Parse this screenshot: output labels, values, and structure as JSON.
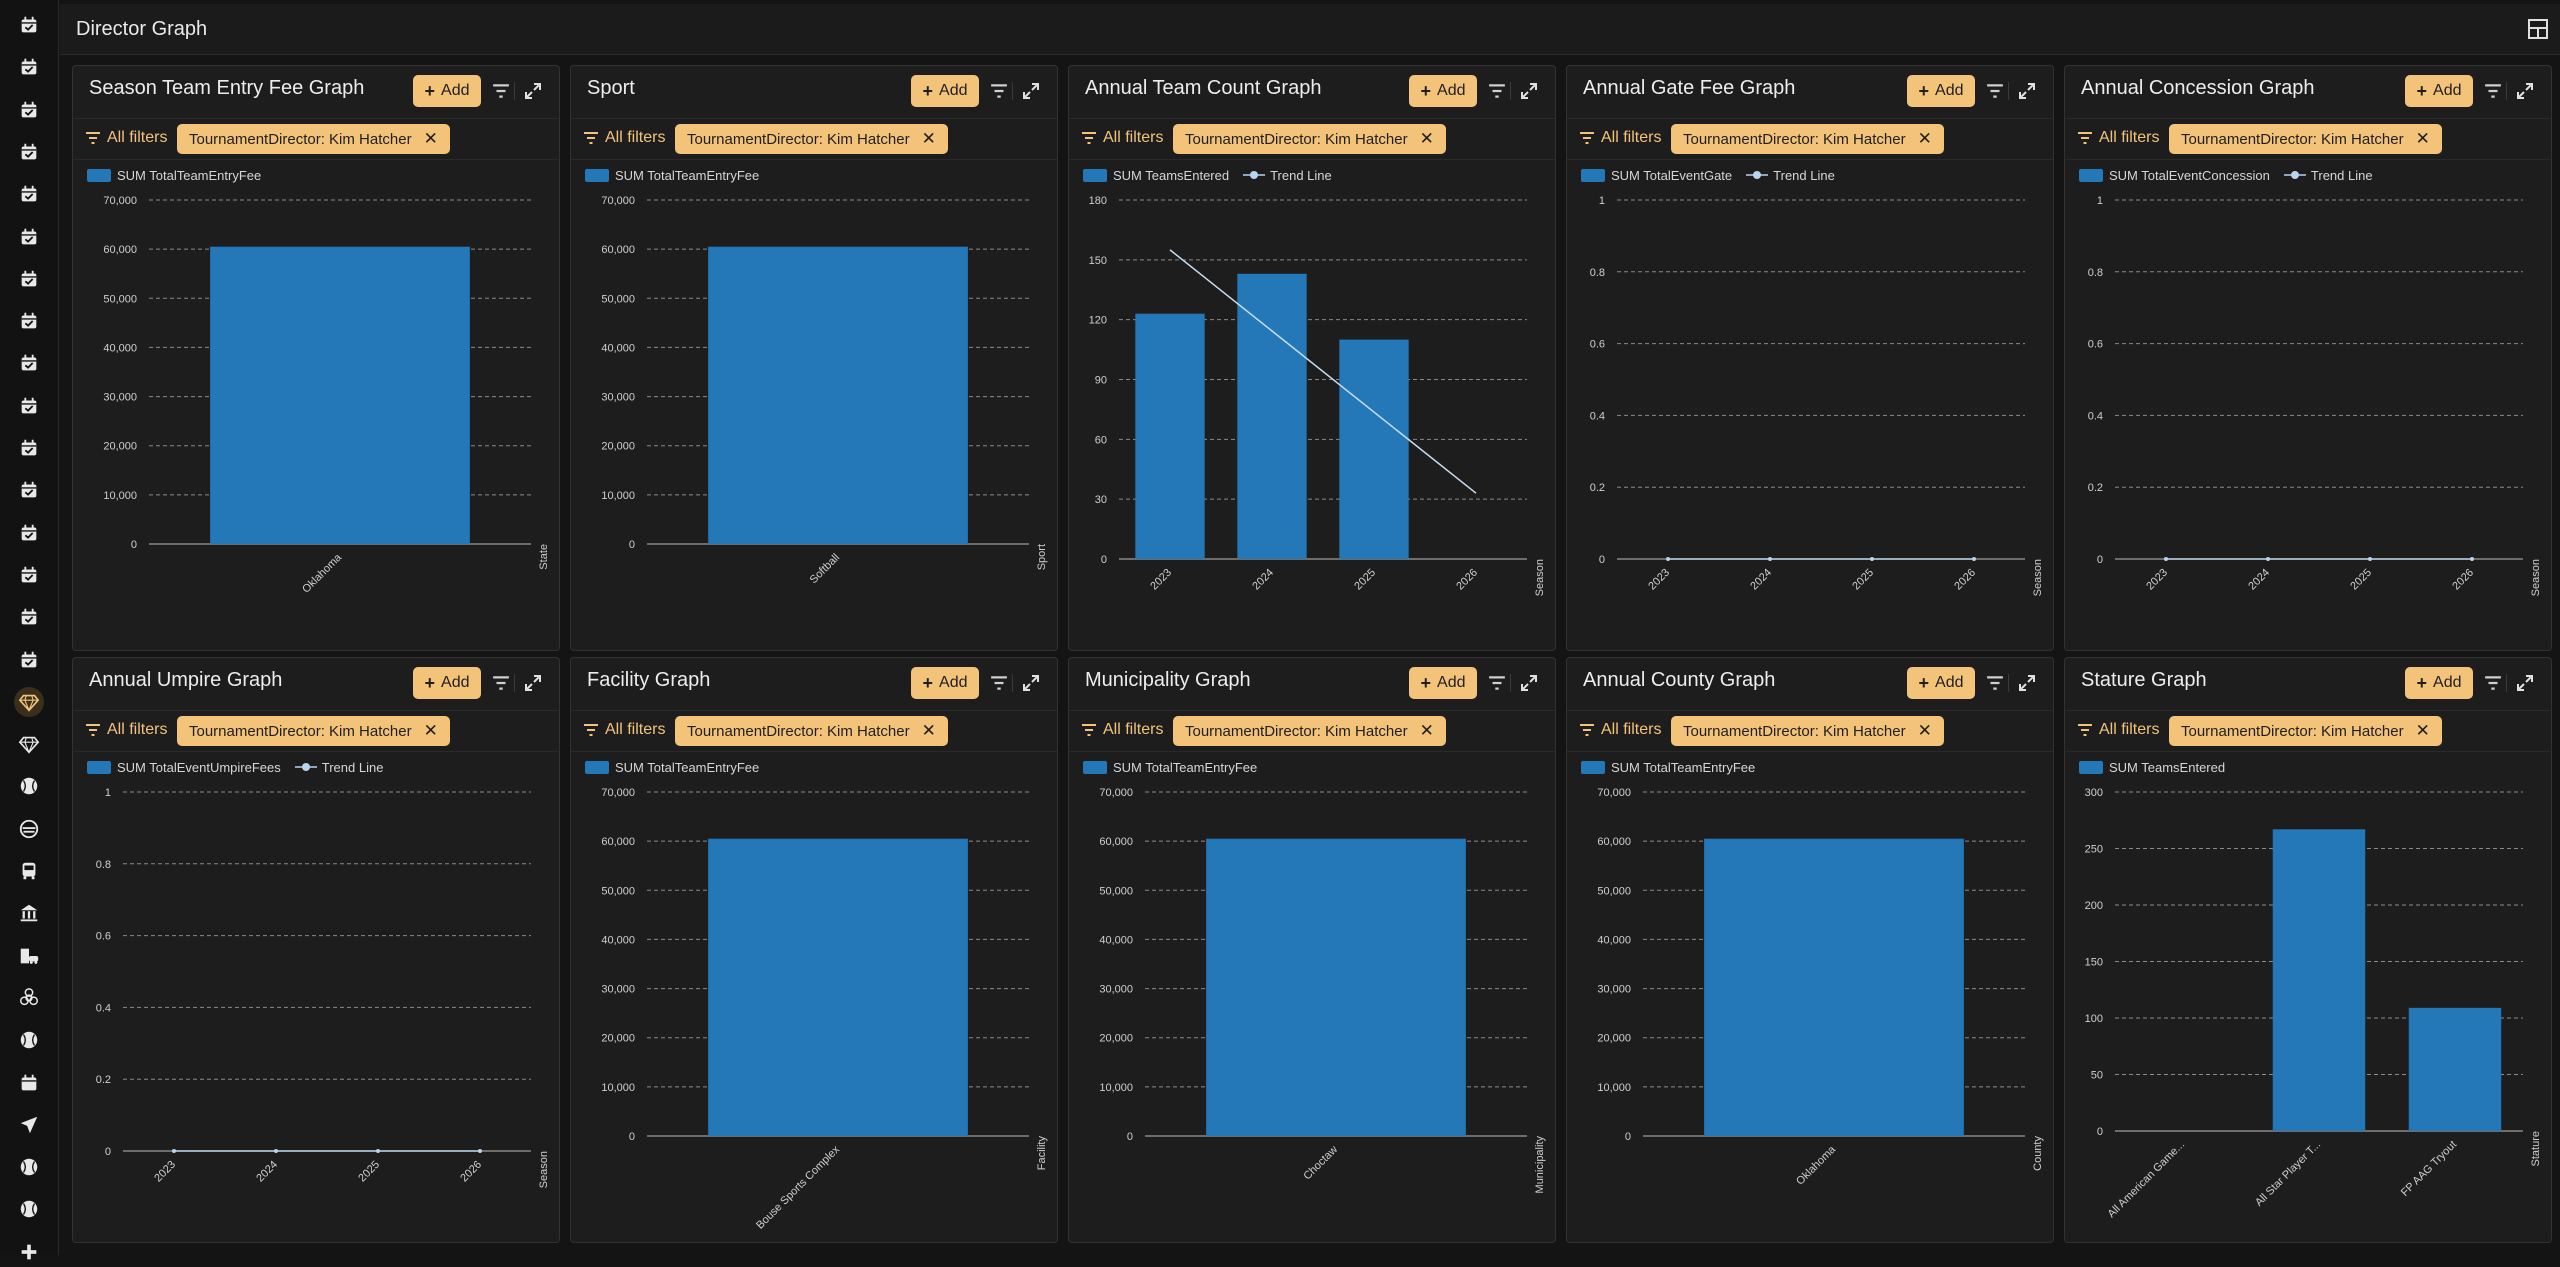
{
  "page": {
    "title": "Director Graph"
  },
  "sidebar": {
    "items": [
      {
        "icon": "calendar-check-icon"
      },
      {
        "icon": "calendar-check-icon"
      },
      {
        "icon": "calendar-check-icon"
      },
      {
        "icon": "calendar-check-icon"
      },
      {
        "icon": "calendar-check-icon"
      },
      {
        "icon": "calendar-check-icon"
      },
      {
        "icon": "calendar-check-icon"
      },
      {
        "icon": "calendar-check-icon"
      },
      {
        "icon": "calendar-check-icon"
      },
      {
        "icon": "calendar-check-icon"
      },
      {
        "icon": "calendar-check-icon"
      },
      {
        "icon": "calendar-check-icon"
      },
      {
        "icon": "calendar-check-icon"
      },
      {
        "icon": "calendar-check-icon"
      },
      {
        "icon": "calendar-check-icon"
      },
      {
        "icon": "calendar-check-icon"
      },
      {
        "icon": "diamond-icon",
        "active": true
      },
      {
        "icon": "diamond-icon"
      },
      {
        "icon": "baseball-icon"
      },
      {
        "icon": "mask-icon"
      },
      {
        "icon": "bus-icon"
      },
      {
        "icon": "bank-icon"
      },
      {
        "icon": "building-car-icon"
      },
      {
        "icon": "biohazard-icon"
      },
      {
        "icon": "baseball-icon"
      },
      {
        "icon": "calendar-icon"
      },
      {
        "icon": "send-icon"
      },
      {
        "icon": "baseball-icon"
      },
      {
        "icon": "baseball-icon"
      },
      {
        "icon": "plus-icon"
      }
    ]
  },
  "common": {
    "add_label": "Add",
    "all_filters_label": "All filters",
    "filter_chip": "TournamentDirector: Kim Hatcher",
    "trend_label": "Trend Line",
    "accent": "#f3c37a",
    "bar_color": "#2478b8"
  },
  "panels": [
    {
      "title": "Season Team Entry Fee Graph",
      "legend": "SUM TotalTeamEntryFee",
      "chart_data": {
        "type": "bar",
        "categories": [
          "Oklahoma"
        ],
        "series": [
          {
            "name": "SUM TotalTeamEntryFee",
            "values": [
              60500
            ]
          }
        ],
        "yticks": [
          "0",
          "10,000",
          "20,000",
          "30,000",
          "40,000",
          "50,000",
          "60,000",
          "70,000"
        ],
        "ylim": [
          0,
          70000
        ],
        "xlabel": "State",
        "grid": true
      }
    },
    {
      "title": "Sport",
      "legend": "SUM TotalTeamEntryFee",
      "chart_data": {
        "type": "bar",
        "categories": [
          "Softball"
        ],
        "series": [
          {
            "name": "SUM TotalTeamEntryFee",
            "values": [
              60500
            ]
          }
        ],
        "yticks": [
          "0",
          "10,000",
          "20,000",
          "30,000",
          "40,000",
          "50,000",
          "60,000",
          "70,000"
        ],
        "ylim": [
          0,
          70000
        ],
        "xlabel": "Sport",
        "grid": true
      }
    },
    {
      "title": "Annual Team Count Graph",
      "legend": "SUM TeamsEntered",
      "chart_data": {
        "type": "bar",
        "categories": [
          "2023",
          "2024",
          "2025",
          "2026"
        ],
        "series": [
          {
            "name": "SUM TeamsEntered",
            "values": [
              123,
              143,
              110,
              null
            ]
          }
        ],
        "trend": {
          "name": "Trend Line",
          "values": [
            155,
            null,
            null,
            33
          ]
        },
        "yticks": [
          "0",
          "30",
          "60",
          "90",
          "120",
          "150",
          "180"
        ],
        "ylim": [
          0,
          180
        ],
        "xlabel": "Season",
        "grid": true
      }
    },
    {
      "title": "Annual Gate Fee Graph",
      "legend": "SUM TotalEventGate",
      "chart_data": {
        "type": "bar",
        "categories": [
          "2023",
          "2024",
          "2025",
          "2026"
        ],
        "series": [
          {
            "name": "SUM TotalEventGate",
            "values": [
              0,
              0,
              0,
              0
            ]
          }
        ],
        "trend": {
          "name": "Trend Line",
          "values": [
            0,
            0,
            0,
            0
          ]
        },
        "yticks": [
          "0",
          "0.2",
          "0.4",
          "0.6",
          "0.8",
          "1"
        ],
        "ylim": [
          0,
          1
        ],
        "xlabel": "Season",
        "grid": true
      }
    },
    {
      "title": "Annual Concession Graph",
      "legend": "SUM TotalEventConcession",
      "chart_data": {
        "type": "bar",
        "categories": [
          "2023",
          "2024",
          "2025",
          "2026"
        ],
        "series": [
          {
            "name": "SUM TotalEventConcession",
            "values": [
              0,
              0,
              0,
              0
            ]
          }
        ],
        "trend": {
          "name": "Trend Line",
          "values": [
            0,
            0,
            0,
            0
          ]
        },
        "yticks": [
          "0",
          "0.2",
          "0.4",
          "0.6",
          "0.8",
          "1"
        ],
        "ylim": [
          0,
          1
        ],
        "xlabel": "Season",
        "grid": true
      }
    },
    {
      "title": "Annual Umpire Graph",
      "legend": "SUM TotalEventUmpireFees",
      "chart_data": {
        "type": "bar",
        "categories": [
          "2023",
          "2024",
          "2025",
          "2026"
        ],
        "series": [
          {
            "name": "SUM TotalEventUmpireFees",
            "values": [
              0,
              0,
              0,
              0
            ]
          }
        ],
        "trend": {
          "name": "Trend Line",
          "values": [
            0,
            0,
            0,
            0
          ]
        },
        "yticks": [
          "0",
          "0.2",
          "0.4",
          "0.6",
          "0.8",
          "1"
        ],
        "ylim": [
          0,
          1
        ],
        "xlabel": "Season",
        "grid": true
      }
    },
    {
      "title": "Facility Graph",
      "legend": "SUM TotalTeamEntryFee",
      "chart_data": {
        "type": "bar",
        "categories": [
          "Bouse Sports Complex"
        ],
        "series": [
          {
            "name": "SUM TotalTeamEntryFee",
            "values": [
              60500
            ]
          }
        ],
        "yticks": [
          "0",
          "10,000",
          "20,000",
          "30,000",
          "40,000",
          "50,000",
          "60,000",
          "70,000"
        ],
        "ylim": [
          0,
          70000
        ],
        "xlabel": "Facility",
        "grid": true
      }
    },
    {
      "title": "Municipality Graph",
      "legend": "SUM TotalTeamEntryFee",
      "chart_data": {
        "type": "bar",
        "categories": [
          "Choctaw"
        ],
        "series": [
          {
            "name": "SUM TotalTeamEntryFee",
            "values": [
              60500
            ]
          }
        ],
        "yticks": [
          "0",
          "10,000",
          "20,000",
          "30,000",
          "40,000",
          "50,000",
          "60,000",
          "70,000"
        ],
        "ylim": [
          0,
          70000
        ],
        "xlabel": "Municipality",
        "grid": true
      }
    },
    {
      "title": "Annual County Graph",
      "legend": "SUM TotalTeamEntryFee",
      "chart_data": {
        "type": "bar",
        "categories": [
          "Oklahoma"
        ],
        "series": [
          {
            "name": "SUM TotalTeamEntryFee",
            "values": [
              60500
            ]
          }
        ],
        "yticks": [
          "0",
          "10,000",
          "20,000",
          "30,000",
          "40,000",
          "50,000",
          "60,000",
          "70,000"
        ],
        "ylim": [
          0,
          70000
        ],
        "xlabel": "County",
        "grid": true
      }
    },
    {
      "title": "Stature Graph",
      "legend": "SUM TeamsEntered",
      "chart_data": {
        "type": "bar",
        "categories": [
          "All American Game...",
          "All Star Player T...",
          "FP AAG Tryout"
        ],
        "series": [
          {
            "name": "SUM TeamsEntered",
            "values": [
              null,
              267,
              109
            ]
          }
        ],
        "yticks": [
          "0",
          "50",
          "100",
          "150",
          "200",
          "250",
          "300"
        ],
        "ylim": [
          0,
          300
        ],
        "xlabel": "Stature",
        "grid": true
      }
    }
  ]
}
